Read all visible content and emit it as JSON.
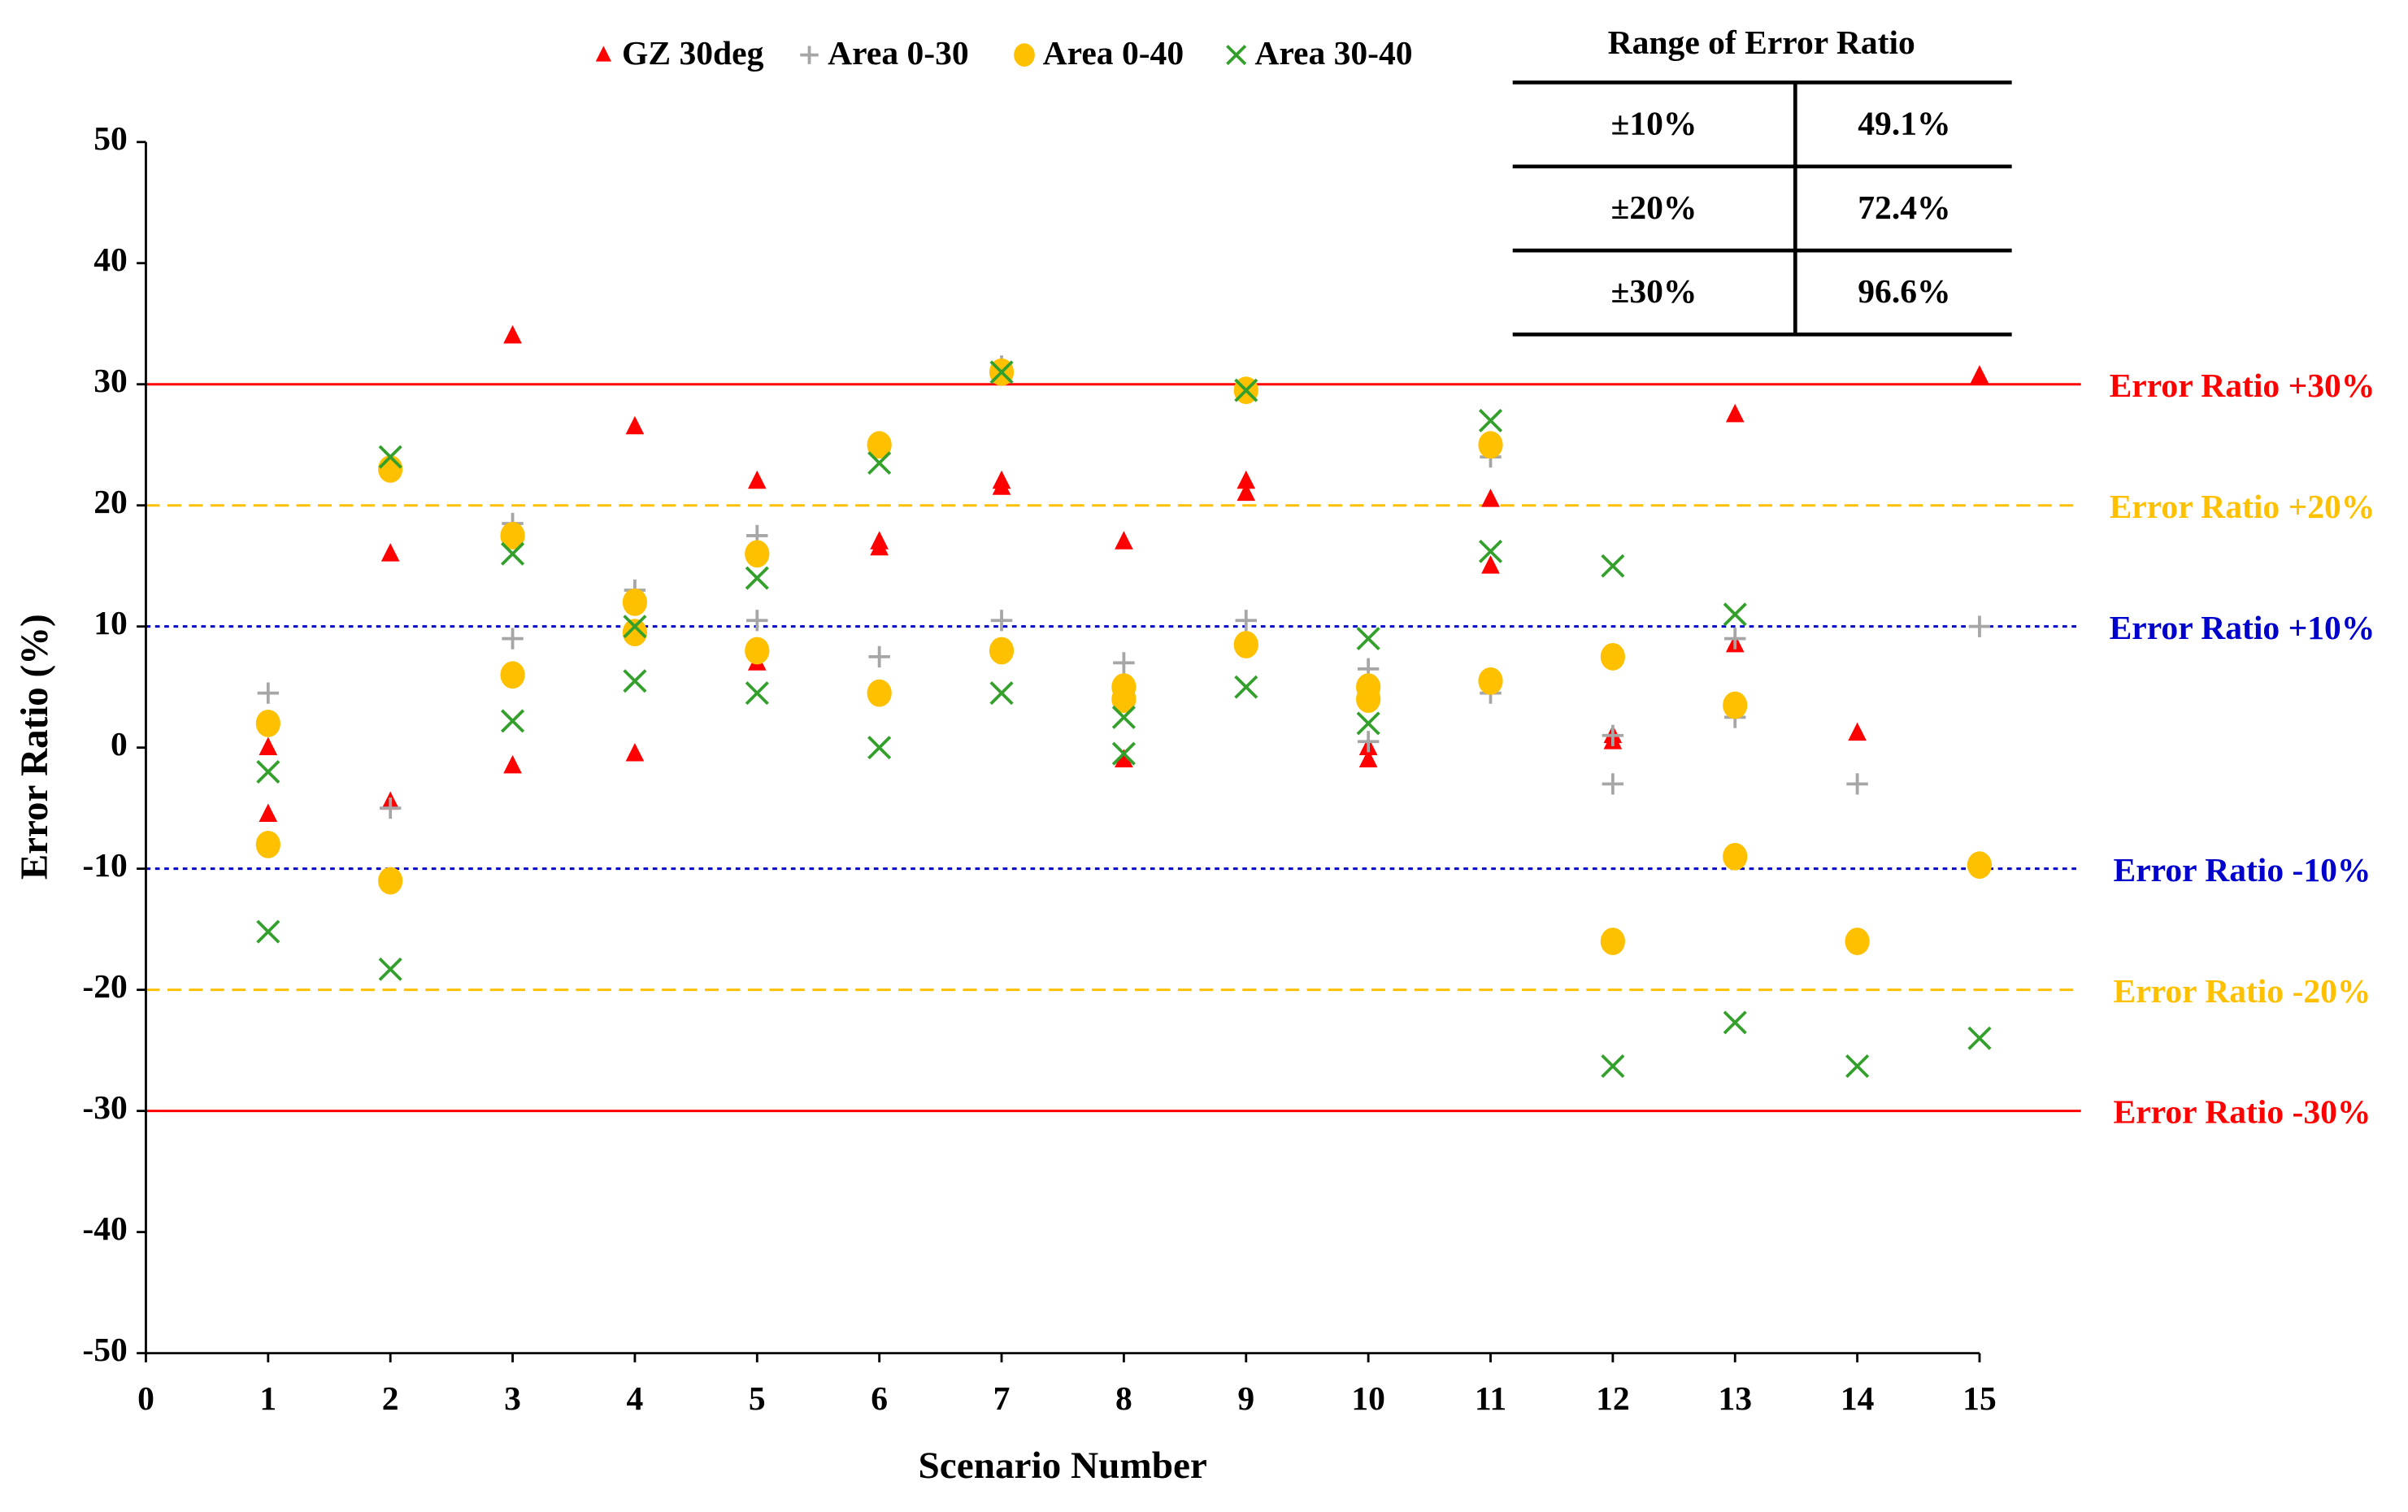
{
  "chart_data": {
    "type": "scatter",
    "x_label": "Scenario Number",
    "y_label": "Error Ratio (%)",
    "xlim": [
      0,
      15
    ],
    "ylim": [
      -50,
      50
    ],
    "xticks": [
      0,
      1,
      2,
      3,
      4,
      5,
      6,
      7,
      8,
      9,
      10,
      11,
      12,
      13,
      14,
      15
    ],
    "yticks": [
      -50,
      -40,
      -30,
      -20,
      -10,
      0,
      10,
      20,
      30,
      40,
      50
    ],
    "legend": "top",
    "series": [
      {
        "name": "GZ 30deg",
        "color": "#ff0000",
        "marker": "triangle",
        "x": [
          1,
          1,
          2,
          2,
          3,
          3,
          4,
          4,
          5,
          5,
          6,
          6,
          7,
          7,
          8,
          8,
          9,
          9,
          10,
          10,
          11,
          11,
          12,
          12,
          13,
          13,
          14,
          15
        ],
        "y": [
          0,
          -5.5,
          16,
          -4.5,
          34,
          -1.5,
          26.5,
          -0.5,
          22,
          7,
          17,
          16.5,
          22,
          21.5,
          17,
          -1,
          22,
          21,
          0,
          -1,
          20.5,
          15,
          1,
          0.5,
          27.5,
          8.5,
          1.2,
          30.7
        ]
      },
      {
        "name": "Area 0-30",
        "color": "#a6a6a6",
        "marker": "plus",
        "x": [
          1,
          2,
          2,
          3,
          3,
          4,
          5,
          5,
          6,
          6,
          7,
          7,
          8,
          9,
          9,
          10,
          10,
          11,
          11,
          12,
          12,
          13,
          13,
          14,
          15
        ],
        "y": [
          4.5,
          23,
          -5,
          18.5,
          9,
          13,
          17.5,
          10.5,
          7.5,
          25,
          10.5,
          31.5,
          7,
          10.5,
          29.5,
          6.5,
          0.5,
          24,
          4.5,
          -3,
          1,
          2.5,
          9,
          -3,
          10
        ]
      },
      {
        "name": "Area 0-40",
        "color": "#ffc000",
        "marker": "circle",
        "x": [
          1,
          1,
          2,
          2,
          3,
          3,
          4,
          4,
          5,
          5,
          6,
          6,
          7,
          7,
          8,
          8,
          9,
          9,
          10,
          10,
          11,
          11,
          12,
          12,
          13,
          13,
          14,
          15
        ],
        "y": [
          2,
          -8,
          -11,
          23,
          17.5,
          6,
          12,
          9.5,
          16,
          8,
          25,
          4.5,
          31,
          8,
          5,
          4,
          8.5,
          29.5,
          5,
          4,
          25,
          5.5,
          7.5,
          -16,
          3.5,
          -9,
          -16,
          -9.7
        ]
      },
      {
        "name": "Area 30-40",
        "color": "#33a02c",
        "marker": "x",
        "x": [
          1,
          1,
          2,
          2,
          3,
          3,
          4,
          4,
          5,
          5,
          6,
          6,
          7,
          7,
          8,
          8,
          9,
          9,
          10,
          10,
          11,
          11,
          12,
          12,
          13,
          13,
          14,
          15
        ],
        "y": [
          -2,
          -15.2,
          24,
          -18.3,
          16,
          2.2,
          10,
          5.5,
          14,
          4.5,
          23.5,
          0,
          31,
          4.5,
          2.5,
          -0.5,
          29.5,
          5,
          9,
          2,
          27,
          16.2,
          15,
          -26.3,
          11,
          -22.7,
          -26.3,
          -24
        ]
      }
    ],
    "reference_lines": [
      {
        "value": 30,
        "label": "Error Ratio +30%",
        "color": "#ff0000",
        "style": "solid"
      },
      {
        "value": 20,
        "label": "Error Ratio +20%",
        "color": "#ffc000",
        "style": "dashed"
      },
      {
        "value": 10,
        "label": "Error Ratio +10%",
        "color": "#0000cc",
        "style": "dotted"
      },
      {
        "value": -10,
        "label": "Error Ratio -10%",
        "color": "#0000cc",
        "style": "dotted"
      },
      {
        "value": -20,
        "label": "Error Ratio -20%",
        "color": "#ffc000",
        "style": "dashed"
      },
      {
        "value": -30,
        "label": "Error Ratio -30%",
        "color": "#ff0000",
        "style": "solid"
      }
    ],
    "table": {
      "title": "Range of Error Ratio",
      "rows": [
        [
          "±10%",
          "49.1%"
        ],
        [
          "±20%",
          "72.4%"
        ],
        [
          "±30%",
          "96.6%"
        ]
      ]
    }
  }
}
